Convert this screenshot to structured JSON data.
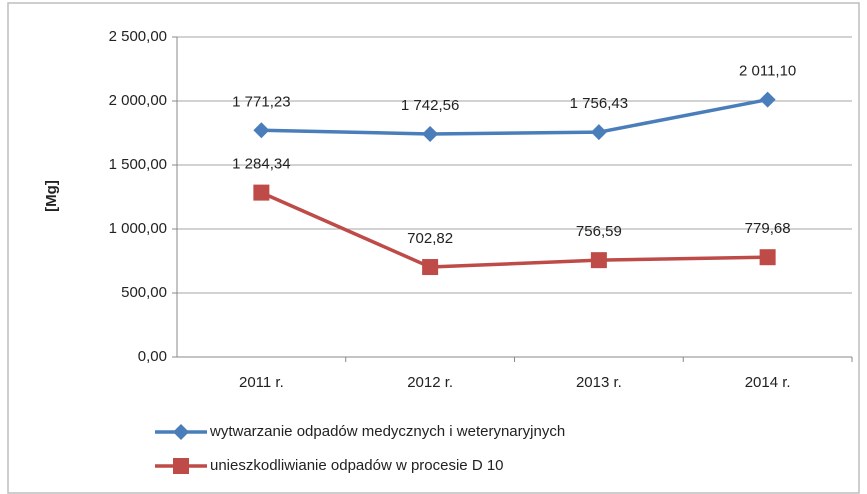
{
  "chart_data": {
    "type": "line",
    "y_label": "[Mg]",
    "categories": [
      "2011 r.",
      "2012 r.",
      "2013 r.",
      "2014 r."
    ],
    "series": [
      {
        "name": "wytwarzanie odpadów medycznych i weterynaryjnych",
        "color": "#4a7ebb",
        "marker": "diamond",
        "values": [
          1771.23,
          1742.56,
          1756.43,
          2011.1
        ],
        "value_labels": [
          "1 771,23",
          "1 742,56",
          "1 756,43",
          "2 011,10"
        ]
      },
      {
        "name": "unieszkodliwianie odpadów w procesie D 10",
        "color": "#be4b48",
        "marker": "square",
        "values": [
          1284.34,
          702.82,
          756.59,
          779.68
        ],
        "value_labels": [
          "1 284,34",
          "702,82",
          "756,59",
          "779,68"
        ]
      }
    ],
    "ylim": [
      0,
      2500
    ],
    "yticks": [
      {
        "value": 0,
        "label": "0,00"
      },
      {
        "value": 500,
        "label": "500,00"
      },
      {
        "value": 1000,
        "label": "1 000,00"
      },
      {
        "value": 1500,
        "label": "1 500,00"
      },
      {
        "value": 2000,
        "label": "2 000,00"
      },
      {
        "value": 2500,
        "label": "2 500,00"
      }
    ],
    "grid": true,
    "legend": "bottom"
  }
}
